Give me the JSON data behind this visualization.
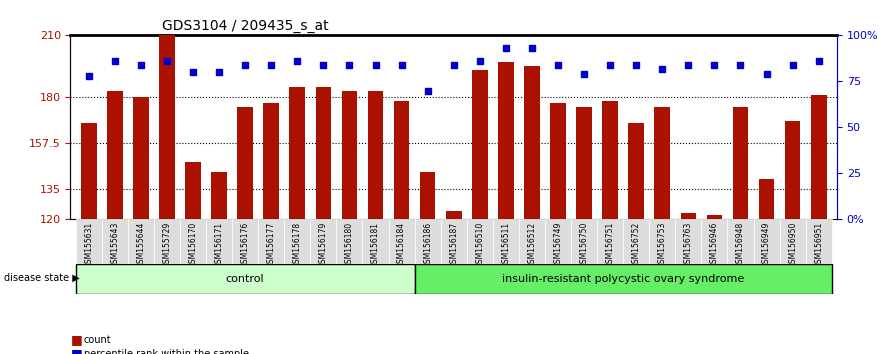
{
  "title": "GDS3104 / 209435_s_at",
  "samples": [
    "GSM155631",
    "GSM155643",
    "GSM155644",
    "GSM155729",
    "GSM156170",
    "GSM156171",
    "GSM156176",
    "GSM156177",
    "GSM156178",
    "GSM156179",
    "GSM156180",
    "GSM156181",
    "GSM156184",
    "GSM156186",
    "GSM156187",
    "GSM156510",
    "GSM156511",
    "GSM156512",
    "GSM156749",
    "GSM156750",
    "GSM156751",
    "GSM156752",
    "GSM156753",
    "GSM156763",
    "GSM156946",
    "GSM156948",
    "GSM156949",
    "GSM156950",
    "GSM156951"
  ],
  "counts": [
    167,
    183,
    180,
    210,
    148,
    143,
    175,
    177,
    185,
    185,
    183,
    183,
    178,
    143,
    124,
    193,
    197,
    195,
    177,
    175,
    178,
    167,
    175,
    123,
    122,
    175,
    140,
    168,
    181
  ],
  "percentile_ranks": [
    78,
    86,
    84,
    86,
    80,
    80,
    84,
    84,
    86,
    84,
    84,
    84,
    84,
    70,
    84,
    86,
    93,
    93,
    84,
    79,
    84,
    84,
    82,
    84,
    84,
    84,
    79,
    84,
    86
  ],
  "control_count": 13,
  "disease_count": 16,
  "control_label": "control",
  "disease_label": "insulin-resistant polycystic ovary syndrome",
  "disease_state_label": "disease state",
  "y_min": 120,
  "y_max": 210,
  "y_ticks": [
    120,
    135,
    157.5,
    180,
    210
  ],
  "y_tick_labels": [
    "120",
    "135",
    "157.5",
    "180",
    "210"
  ],
  "right_y_ticks": [
    0,
    25,
    50,
    75,
    100
  ],
  "right_y_labels": [
    "0%",
    "25",
    "50",
    "75",
    "100%"
  ],
  "bar_color": "#aa1100",
  "dot_color": "#0000cc",
  "control_bg": "#ccffcc",
  "disease_bg": "#66ee66",
  "label_bg": "#dddddd",
  "grid_color": "#000000",
  "legend_count_label": "count",
  "legend_pct_label": "percentile rank within the sample"
}
